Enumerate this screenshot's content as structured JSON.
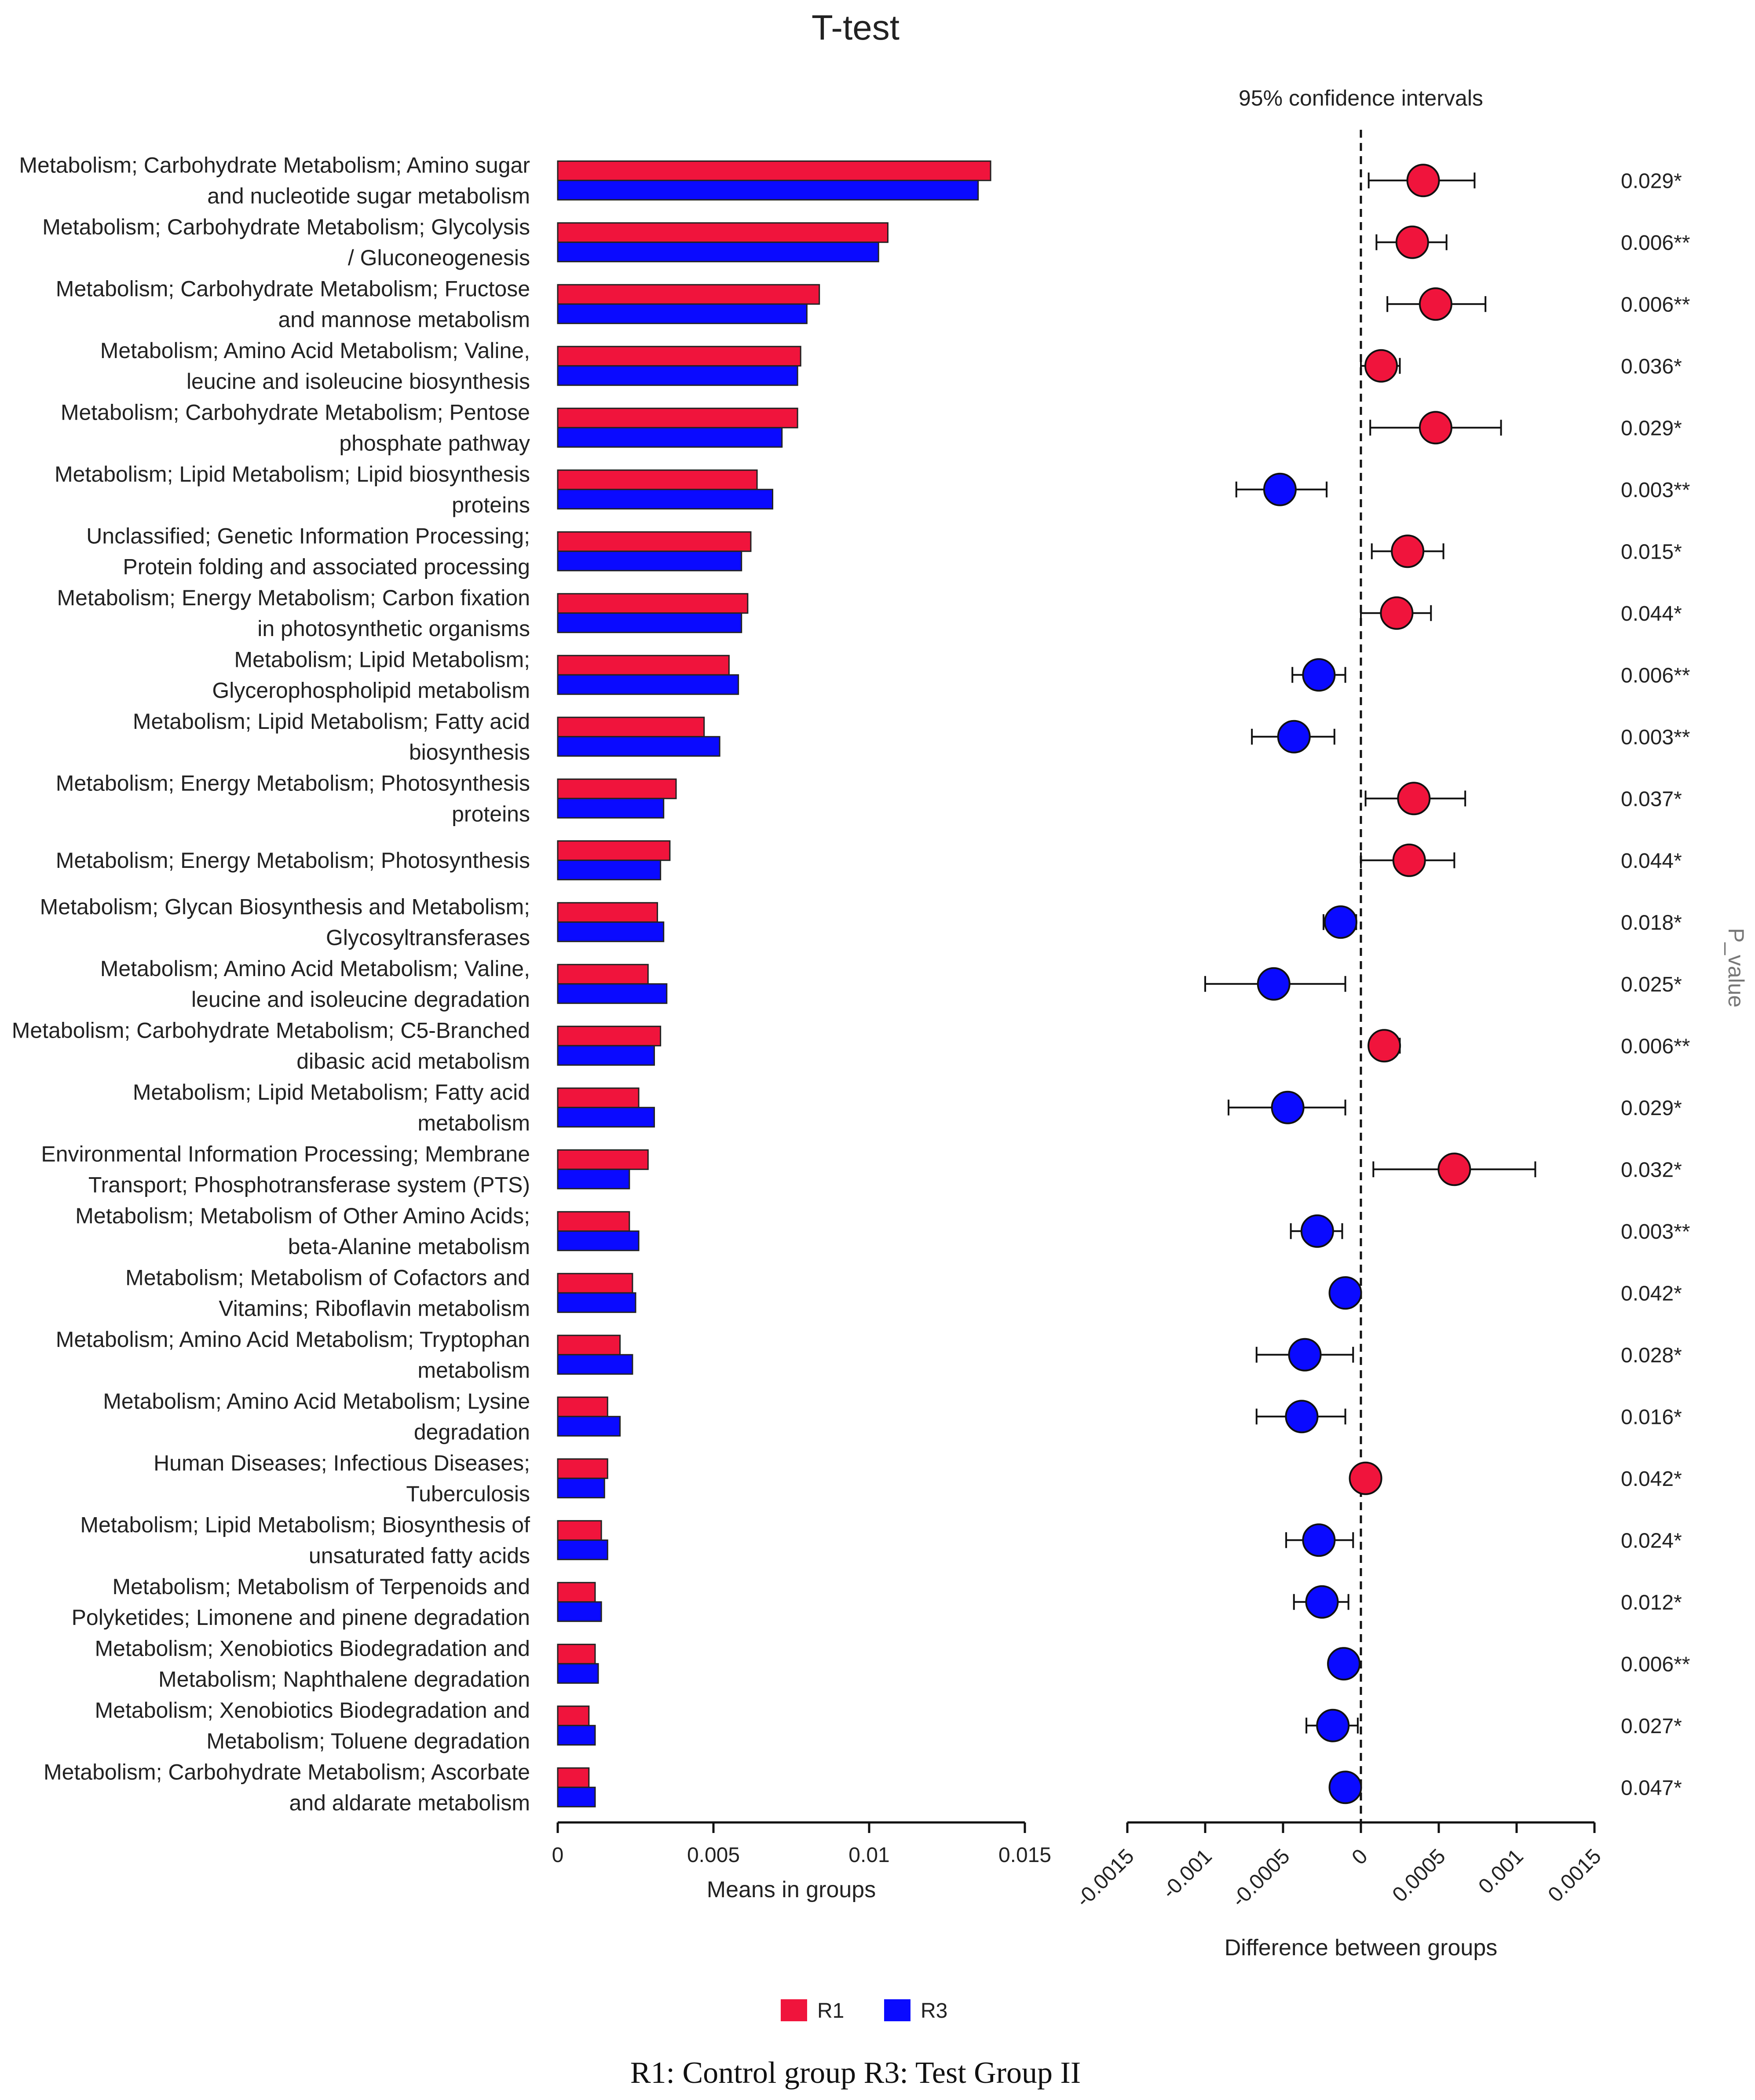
{
  "chart_data": {
    "type": "bar",
    "title": "T-test",
    "caption": "R1: Control group R3: Test Group II",
    "pvalue_axis_label": "P_value",
    "colors": {
      "R1": "#f0143c",
      "R3": "#0a0aff"
    },
    "legend": {
      "placement": "bottom-center",
      "entries": [
        "R1",
        "R3"
      ]
    },
    "left_panel": {
      "xlabel": "Means in groups",
      "xlim": [
        0,
        0.015
      ],
      "ticks": [
        "0",
        "0.005",
        "0.01",
        "0.015"
      ],
      "tick_values": [
        0,
        0.005,
        0.01,
        0.015
      ]
    },
    "right_panel": {
      "title": "95% confidence intervals",
      "xlabel": "Difference between groups",
      "xlim": [
        -0.0015,
        0.0015
      ],
      "ticks": [
        "-0.0015",
        "-0.001",
        "-0.0005",
        "0",
        "0.0005",
        "0.001",
        "0.0015"
      ],
      "tick_values": [
        -0.0015,
        -0.001,
        -0.0005,
        0,
        0.0005,
        0.001,
        0.0015
      ]
    },
    "categories": [
      {
        "lines": [
          "Metabolism; Carbohydrate Metabolism; Amino sugar",
          "and nucleotide sugar metabolism"
        ],
        "r1": 0.0139,
        "r3": 0.0135,
        "diff": 0.0004,
        "ci": [
          5e-05,
          0.00073
        ],
        "p": "0.029*"
      },
      {
        "lines": [
          "Metabolism; Carbohydrate Metabolism; Glycolysis",
          "/ Gluconeogenesis"
        ],
        "r1": 0.0106,
        "r3": 0.0103,
        "diff": 0.00033,
        "ci": [
          0.0001,
          0.00055
        ],
        "p": "0.006**"
      },
      {
        "lines": [
          "Metabolism; Carbohydrate Metabolism; Fructose",
          "and mannose metabolism"
        ],
        "r1": 0.0084,
        "r3": 0.008,
        "diff": 0.00048,
        "ci": [
          0.00017,
          0.0008
        ],
        "p": "0.006**"
      },
      {
        "lines": [
          "Metabolism; Amino Acid Metabolism; Valine,",
          "leucine and isoleucine biosynthesis"
        ],
        "r1": 0.0078,
        "r3": 0.0077,
        "diff": 0.00013,
        "ci": [
          0.0,
          0.00025
        ],
        "p": "0.036*"
      },
      {
        "lines": [
          "Metabolism; Carbohydrate Metabolism; Pentose",
          "phosphate pathway"
        ],
        "r1": 0.0077,
        "r3": 0.0072,
        "diff": 0.00048,
        "ci": [
          6e-05,
          0.0009
        ],
        "p": "0.029*"
      },
      {
        "lines": [
          "Metabolism; Lipid Metabolism; Lipid biosynthesis",
          "proteins"
        ],
        "r1": 0.0064,
        "r3": 0.0069,
        "diff": -0.00052,
        "ci": [
          -0.0008,
          -0.00022
        ],
        "p": "0.003**"
      },
      {
        "lines": [
          "Unclassified; Genetic Information Processing;",
          "Protein folding and associated processing"
        ],
        "r1": 0.0062,
        "r3": 0.0059,
        "diff": 0.0003,
        "ci": [
          7e-05,
          0.00053
        ],
        "p": "0.015*"
      },
      {
        "lines": [
          "Metabolism; Energy Metabolism; Carbon fixation",
          "in photosynthetic organisms"
        ],
        "r1": 0.0061,
        "r3": 0.0059,
        "diff": 0.00023,
        "ci": [
          0.0,
          0.00045
        ],
        "p": "0.044*"
      },
      {
        "lines": [
          "Metabolism; Lipid Metabolism;",
          "Glycerophospholipid metabolism"
        ],
        "r1": 0.0055,
        "r3": 0.0058,
        "diff": -0.00027,
        "ci": [
          -0.00044,
          -0.0001
        ],
        "p": "0.006**"
      },
      {
        "lines": [
          "Metabolism; Lipid Metabolism; Fatty acid",
          "biosynthesis"
        ],
        "r1": 0.0047,
        "r3": 0.0052,
        "diff": -0.00043,
        "ci": [
          -0.0007,
          -0.00017
        ],
        "p": "0.003**"
      },
      {
        "lines": [
          "Metabolism; Energy Metabolism; Photosynthesis",
          "proteins"
        ],
        "r1": 0.0038,
        "r3": 0.0034,
        "diff": 0.00034,
        "ci": [
          3e-05,
          0.00067
        ],
        "p": "0.037*"
      },
      {
        "lines": [
          "Metabolism; Energy Metabolism; Photosynthesis"
        ],
        "r1": 0.0036,
        "r3": 0.0033,
        "diff": 0.00031,
        "ci": [
          0.0,
          0.0006
        ],
        "p": "0.044*"
      },
      {
        "lines": [
          "Metabolism; Glycan Biosynthesis and Metabolism;",
          "Glycosyltransferases"
        ],
        "r1": 0.0032,
        "r3": 0.0034,
        "diff": -0.00013,
        "ci": [
          -0.00024,
          -3e-05
        ],
        "p": "0.018*"
      },
      {
        "lines": [
          "Metabolism; Amino Acid Metabolism; Valine,",
          "leucine and isoleucine degradation"
        ],
        "r1": 0.0029,
        "r3": 0.0035,
        "diff": -0.00056,
        "ci": [
          -0.001,
          -0.0001
        ],
        "p": "0.025*"
      },
      {
        "lines": [
          "Metabolism; Carbohydrate Metabolism; C5-Branched",
          "dibasic acid metabolism"
        ],
        "r1": 0.0033,
        "r3": 0.0031,
        "diff": 0.00015,
        "ci": [
          7e-05,
          0.00025
        ],
        "p": "0.006**"
      },
      {
        "lines": [
          "Metabolism; Lipid Metabolism; Fatty acid",
          "metabolism"
        ],
        "r1": 0.0026,
        "r3": 0.0031,
        "diff": -0.00047,
        "ci": [
          -0.00085,
          -0.0001
        ],
        "p": "0.029*"
      },
      {
        "lines": [
          "Environmental Information Processing; Membrane",
          "Transport; Phosphotransferase system (PTS)"
        ],
        "r1": 0.0029,
        "r3": 0.0023,
        "diff": 0.0006,
        "ci": [
          8e-05,
          0.00112
        ],
        "p": "0.032*"
      },
      {
        "lines": [
          "Metabolism; Metabolism of Other Amino Acids;",
          "beta-Alanine metabolism"
        ],
        "r1": 0.0023,
        "r3": 0.0026,
        "diff": -0.00028,
        "ci": [
          -0.00045,
          -0.00012
        ],
        "p": "0.003**"
      },
      {
        "lines": [
          "Metabolism; Metabolism of Cofactors and",
          "Vitamins; Riboflavin metabolism"
        ],
        "r1": 0.0024,
        "r3": 0.0025,
        "diff": -0.0001,
        "ci": [
          -0.00018,
          -2e-05
        ],
        "p": "0.042*"
      },
      {
        "lines": [
          "Metabolism; Amino Acid Metabolism; Tryptophan",
          "metabolism"
        ],
        "r1": 0.002,
        "r3": 0.0024,
        "diff": -0.00036,
        "ci": [
          -0.00067,
          -5e-05
        ],
        "p": "0.028*"
      },
      {
        "lines": [
          "Metabolism; Amino Acid Metabolism; Lysine",
          "degradation"
        ],
        "r1": 0.0016,
        "r3": 0.002,
        "diff": -0.00038,
        "ci": [
          -0.00067,
          -0.0001
        ],
        "p": "0.016*"
      },
      {
        "lines": [
          "Human Diseases; Infectious Diseases;",
          "Tuberculosis"
        ],
        "r1": 0.0016,
        "r3": 0.0015,
        "diff": 3e-05,
        "ci": [
          1e-05,
          5e-05
        ],
        "p": "0.042*"
      },
      {
        "lines": [
          "Metabolism; Lipid Metabolism; Biosynthesis of",
          "unsaturated fatty acids"
        ],
        "r1": 0.0014,
        "r3": 0.0016,
        "diff": -0.00027,
        "ci": [
          -0.00048,
          -5e-05
        ],
        "p": "0.024*"
      },
      {
        "lines": [
          "Metabolism; Metabolism of Terpenoids and",
          "Polyketides; Limonene and pinene degradation"
        ],
        "r1": 0.0012,
        "r3": 0.0014,
        "diff": -0.00025,
        "ci": [
          -0.00043,
          -8e-05
        ],
        "p": "0.012*"
      },
      {
        "lines": [
          "Metabolism; Xenobiotics Biodegradation and",
          "Metabolism; Naphthalene degradation"
        ],
        "r1": 0.0012,
        "r3": 0.0013,
        "diff": -0.00011,
        "ci": [
          -0.00018,
          -4e-05
        ],
        "p": "0.006**"
      },
      {
        "lines": [
          "Metabolism; Xenobiotics Biodegradation and",
          "Metabolism; Toluene degradation"
        ],
        "r1": 0.001,
        "r3": 0.0012,
        "diff": -0.00018,
        "ci": [
          -0.00035,
          -2e-05
        ],
        "p": "0.027*"
      },
      {
        "lines": [
          "Metabolism; Carbohydrate Metabolism; Ascorbate",
          "and aldarate metabolism"
        ],
        "r1": 0.001,
        "r3": 0.0012,
        "diff": -0.0001,
        "ci": [
          -0.00016,
          -3e-05
        ],
        "p": "0.047*"
      }
    ]
  }
}
